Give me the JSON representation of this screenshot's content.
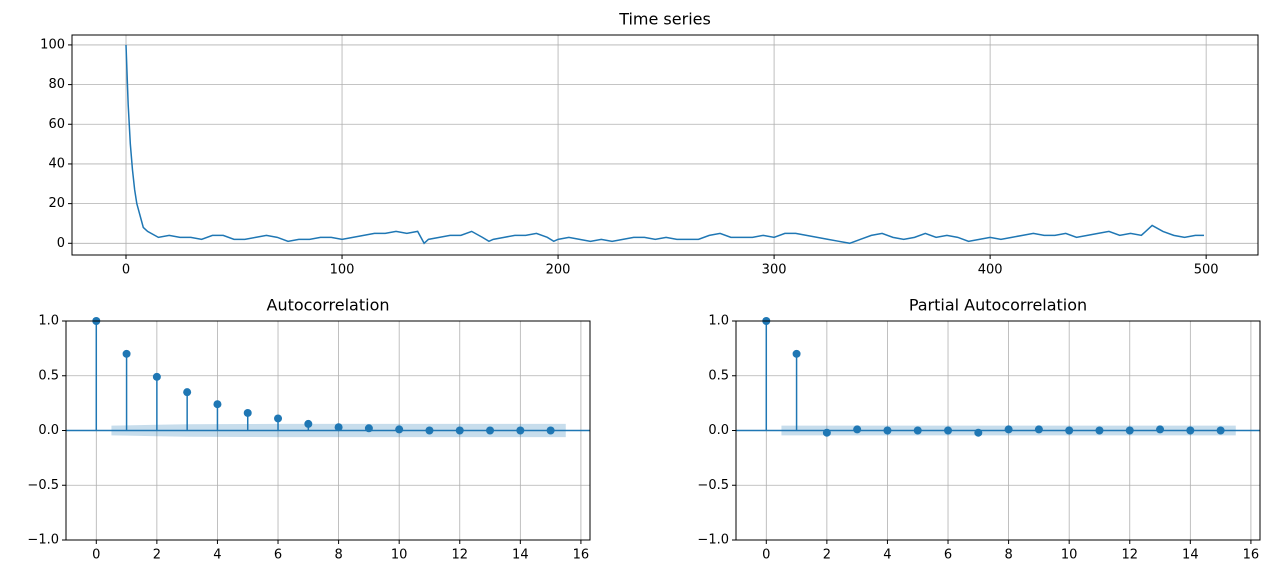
{
  "chart_data": [
    {
      "type": "line",
      "title": "Time series",
      "color": "#1f77b4",
      "grid": true,
      "x": [
        0,
        1,
        2,
        3,
        4,
        5,
        6,
        7,
        8,
        9,
        10,
        15,
        20,
        25,
        30,
        35,
        40,
        45,
        50,
        55,
        60,
        65,
        70,
        75,
        80,
        85,
        90,
        95,
        100,
        105,
        110,
        115,
        120,
        125,
        130,
        135,
        138,
        140,
        145,
        150,
        155,
        160,
        165,
        168,
        170,
        175,
        180,
        185,
        190,
        195,
        198,
        200,
        205,
        210,
        215,
        220,
        225,
        230,
        235,
        240,
        245,
        250,
        255,
        260,
        265,
        270,
        275,
        280,
        285,
        290,
        295,
        300,
        305,
        310,
        315,
        320,
        325,
        330,
        335,
        340,
        345,
        350,
        355,
        360,
        365,
        370,
        375,
        380,
        385,
        390,
        395,
        400,
        405,
        410,
        415,
        420,
        425,
        430,
        435,
        440,
        445,
        450,
        455,
        460,
        465,
        470,
        475,
        480,
        485,
        490,
        495,
        499
      ],
      "values": [
        100,
        70,
        50,
        37,
        27,
        20,
        16,
        12,
        8,
        7,
        6,
        3,
        4,
        3,
        3,
        2,
        4,
        4,
        2,
        2,
        3,
        4,
        3,
        1,
        2,
        2,
        3,
        3,
        2,
        3,
        4,
        5,
        5,
        6,
        5,
        6,
        0,
        2,
        3,
        4,
        4,
        6,
        3,
        1,
        2,
        3,
        4,
        4,
        5,
        3,
        1,
        2,
        3,
        2,
        1,
        2,
        1,
        2,
        3,
        3,
        2,
        3,
        2,
        2,
        2,
        4,
        5,
        3,
        3,
        3,
        4,
        3,
        5,
        5,
        4,
        3,
        2,
        1,
        0,
        2,
        4,
        5,
        3,
        2,
        3,
        5,
        3,
        4,
        3,
        1,
        2,
        3,
        2,
        3,
        4,
        5,
        4,
        4,
        5,
        3,
        4,
        5,
        6,
        4,
        5,
        4,
        9,
        6,
        4,
        3,
        4,
        4
      ],
      "xlim": [
        -25,
        524
      ],
      "ylim": [
        -5.9,
        105
      ],
      "xticks": [
        0,
        100,
        200,
        300,
        400,
        500
      ],
      "yticks": [
        0,
        20,
        40,
        60,
        80,
        100
      ]
    },
    {
      "type": "stem",
      "title": "Autocorrelation",
      "color": "#1f77b4",
      "grid": true,
      "x": [
        0,
        1,
        2,
        3,
        4,
        5,
        6,
        7,
        8,
        9,
        10,
        11,
        12,
        13,
        14,
        15
      ],
      "values": [
        1,
        0.7,
        0.49,
        0.35,
        0.24,
        0.16,
        0.11,
        0.06,
        0.03,
        0.02,
        0.01,
        0,
        0,
        0,
        0,
        0
      ],
      "conf_halfwidth": [
        null,
        0.044,
        0.053,
        0.057,
        0.058,
        0.059,
        0.06,
        0.06,
        0.06,
        0.06,
        0.06,
        0.06,
        0.06,
        0.06,
        0.06,
        0.06
      ],
      "xlim": [
        -1,
        16.3
      ],
      "ylim": [
        -1,
        1
      ],
      "xticks": [
        0,
        2,
        4,
        6,
        8,
        10,
        12,
        14,
        16
      ],
      "yticks": [
        {
          "value": -1,
          "label": "−1.0"
        },
        {
          "value": -0.5,
          "label": "−0.5"
        },
        {
          "value": 0,
          "label": "0.0"
        },
        {
          "value": 0.5,
          "label": "0.5"
        },
        {
          "value": 1,
          "label": "1.0"
        }
      ]
    },
    {
      "type": "stem",
      "title": "Partial Autocorrelation",
      "color": "#1f77b4",
      "grid": true,
      "x": [
        0,
        1,
        2,
        3,
        4,
        5,
        6,
        7,
        8,
        9,
        10,
        11,
        12,
        13,
        14,
        15
      ],
      "values": [
        1,
        0.7,
        -0.02,
        0.01,
        0,
        0,
        0,
        -0.02,
        0.01,
        0.01,
        0,
        0,
        0,
        0.01,
        0,
        0
      ],
      "conf_halfwidth": [
        null,
        0.044,
        0.044,
        0.044,
        0.044,
        0.044,
        0.044,
        0.044,
        0.044,
        0.044,
        0.044,
        0.044,
        0.044,
        0.044,
        0.044,
        0.044
      ],
      "xlim": [
        -1,
        16.3
      ],
      "ylim": [
        -1,
        1
      ],
      "xticks": [
        0,
        2,
        4,
        6,
        8,
        10,
        12,
        14,
        16
      ],
      "yticks": [
        {
          "value": -1,
          "label": "−1.0"
        },
        {
          "value": -0.5,
          "label": "−0.5"
        },
        {
          "value": 0,
          "label": "0.0"
        },
        {
          "value": 0.5,
          "label": "0.5"
        },
        {
          "value": 1,
          "label": "1.0"
        }
      ]
    }
  ]
}
